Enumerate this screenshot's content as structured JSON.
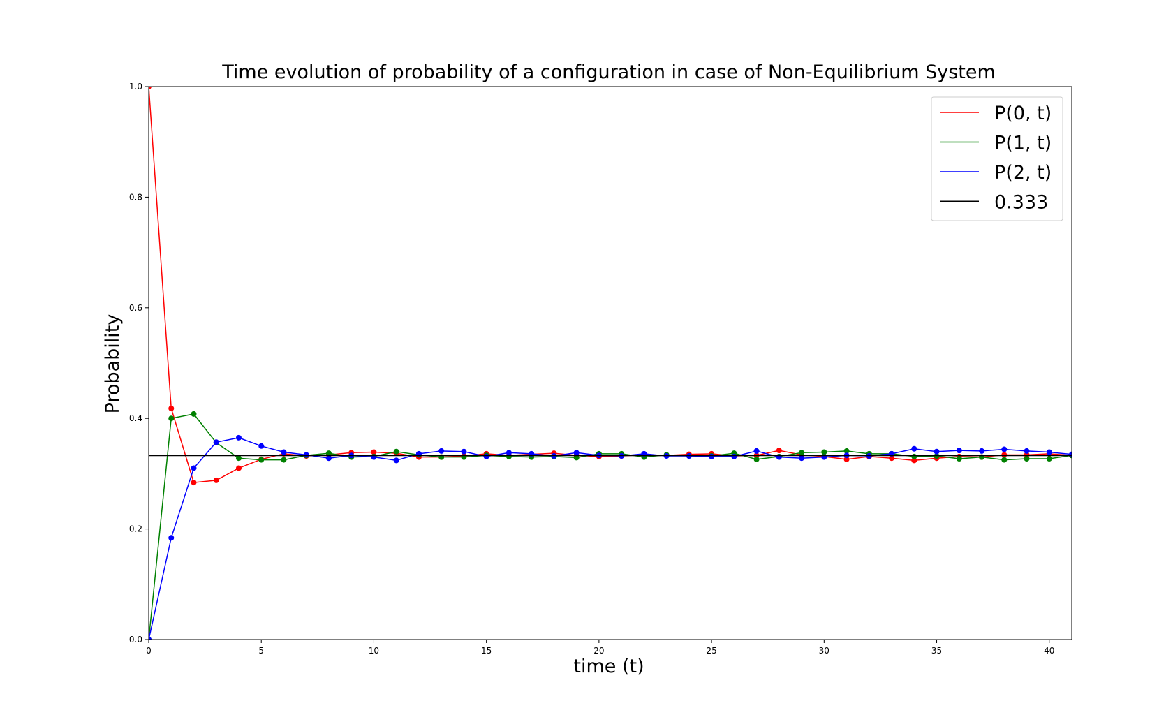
{
  "chart_data": {
    "type": "line",
    "title": "Time evolution of probability of a configuration in case of Non-Equilibrium System",
    "xlabel": "time (t)",
    "ylabel": "Probability",
    "xlim": [
      0,
      41
    ],
    "ylim": [
      0.0,
      1.0
    ],
    "xticks": [
      0,
      5,
      10,
      15,
      20,
      25,
      30,
      35,
      40
    ],
    "xtick_labels": [
      "0",
      "5",
      "10",
      "15",
      "20",
      "25",
      "30",
      "35",
      "40"
    ],
    "yticks": [
      0.0,
      0.2,
      0.4,
      0.6,
      0.8,
      1.0
    ],
    "ytick_labels": [
      "0.0",
      "0.2",
      "0.4",
      "0.6",
      "0.8",
      "1.0"
    ],
    "grid": false,
    "legend_position": "top-right",
    "x": [
      0,
      1,
      2,
      3,
      4,
      5,
      6,
      7,
      8,
      9,
      10,
      11,
      12,
      13,
      14,
      15,
      16,
      17,
      18,
      19,
      20,
      21,
      22,
      23,
      24,
      25,
      26,
      27,
      28,
      29,
      30,
      31,
      32,
      33,
      34,
      35,
      36,
      37,
      38,
      39,
      40,
      41
    ],
    "series": [
      {
        "name": "P(0, t)",
        "color": "#ff0000",
        "markers": true,
        "values": [
          1.0,
          0.418,
          0.284,
          0.288,
          0.31,
          0.326,
          0.336,
          0.332,
          0.334,
          0.338,
          0.339,
          0.337,
          0.33,
          0.33,
          0.332,
          0.336,
          0.333,
          0.335,
          0.337,
          0.333,
          0.331,
          0.332,
          0.334,
          0.333,
          0.335,
          0.336,
          0.332,
          0.333,
          0.342,
          0.334,
          0.331,
          0.326,
          0.331,
          0.328,
          0.324,
          0.328,
          0.331,
          0.33,
          0.334,
          0.334,
          0.336,
          0.333
        ]
      },
      {
        "name": "P(1, t)",
        "color": "#008000",
        "markers": true,
        "values": [
          0.0,
          0.4,
          0.408,
          0.356,
          0.328,
          0.325,
          0.325,
          0.333,
          0.337,
          0.33,
          0.331,
          0.34,
          0.334,
          0.33,
          0.33,
          0.333,
          0.331,
          0.33,
          0.331,
          0.329,
          0.336,
          0.336,
          0.33,
          0.334,
          0.332,
          0.332,
          0.337,
          0.326,
          0.331,
          0.338,
          0.339,
          0.341,
          0.336,
          0.336,
          0.331,
          0.332,
          0.327,
          0.33,
          0.325,
          0.327,
          0.327,
          0.333
        ]
      },
      {
        "name": "P(2, t)",
        "color": "#0000ff",
        "markers": true,
        "values": [
          0.0,
          0.184,
          0.31,
          0.357,
          0.365,
          0.35,
          0.339,
          0.334,
          0.328,
          0.333,
          0.33,
          0.324,
          0.336,
          0.341,
          0.34,
          0.331,
          0.338,
          0.336,
          0.332,
          0.338,
          0.333,
          0.332,
          0.336,
          0.332,
          0.332,
          0.331,
          0.331,
          0.341,
          0.33,
          0.328,
          0.33,
          0.333,
          0.332,
          0.336,
          0.345,
          0.34,
          0.342,
          0.341,
          0.344,
          0.341,
          0.339,
          0.335
        ]
      },
      {
        "name": "0.333",
        "color": "#000000",
        "markers": false,
        "type": "hline",
        "value": 0.333
      }
    ]
  }
}
